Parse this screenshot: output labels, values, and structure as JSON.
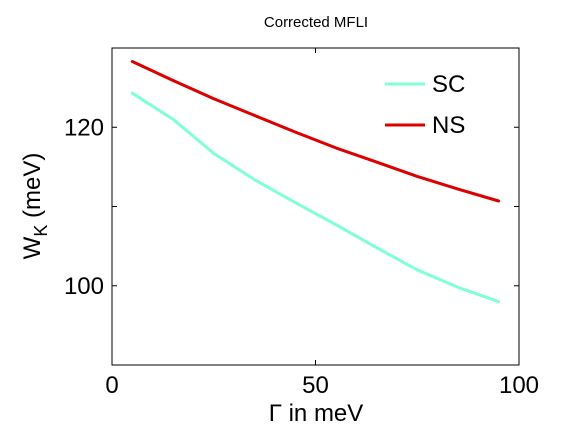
{
  "chart_data": {
    "type": "line",
    "title": "Corrected MFLI",
    "xlabel": "Γ in meV",
    "ylabel": {
      "main": "W",
      "subscript": "K",
      "unit": " (meV)"
    },
    "xlim": [
      0,
      100
    ],
    "ylim": [
      90,
      130
    ],
    "xticks": [
      0,
      50,
      100
    ],
    "yticks": [
      100,
      120
    ],
    "grid": false,
    "legend_position": "top-right",
    "series": [
      {
        "name": "SC",
        "color": "#7fffd4",
        "x": [
          5,
          15,
          25,
          35,
          45,
          55,
          65,
          75,
          85,
          95
        ],
        "y": [
          124.3,
          121,
          116.7,
          113.4,
          110.5,
          107.7,
          104.8,
          102,
          99.8,
          98
        ]
      },
      {
        "name": "NS",
        "color": "#dd0000",
        "x": [
          5,
          15,
          25,
          35,
          45,
          55,
          65,
          75,
          85,
          95
        ],
        "y": [
          128.3,
          125.9,
          123.6,
          121.5,
          119.4,
          117.4,
          115.6,
          113.8,
          112.2,
          110.7
        ]
      }
    ]
  }
}
